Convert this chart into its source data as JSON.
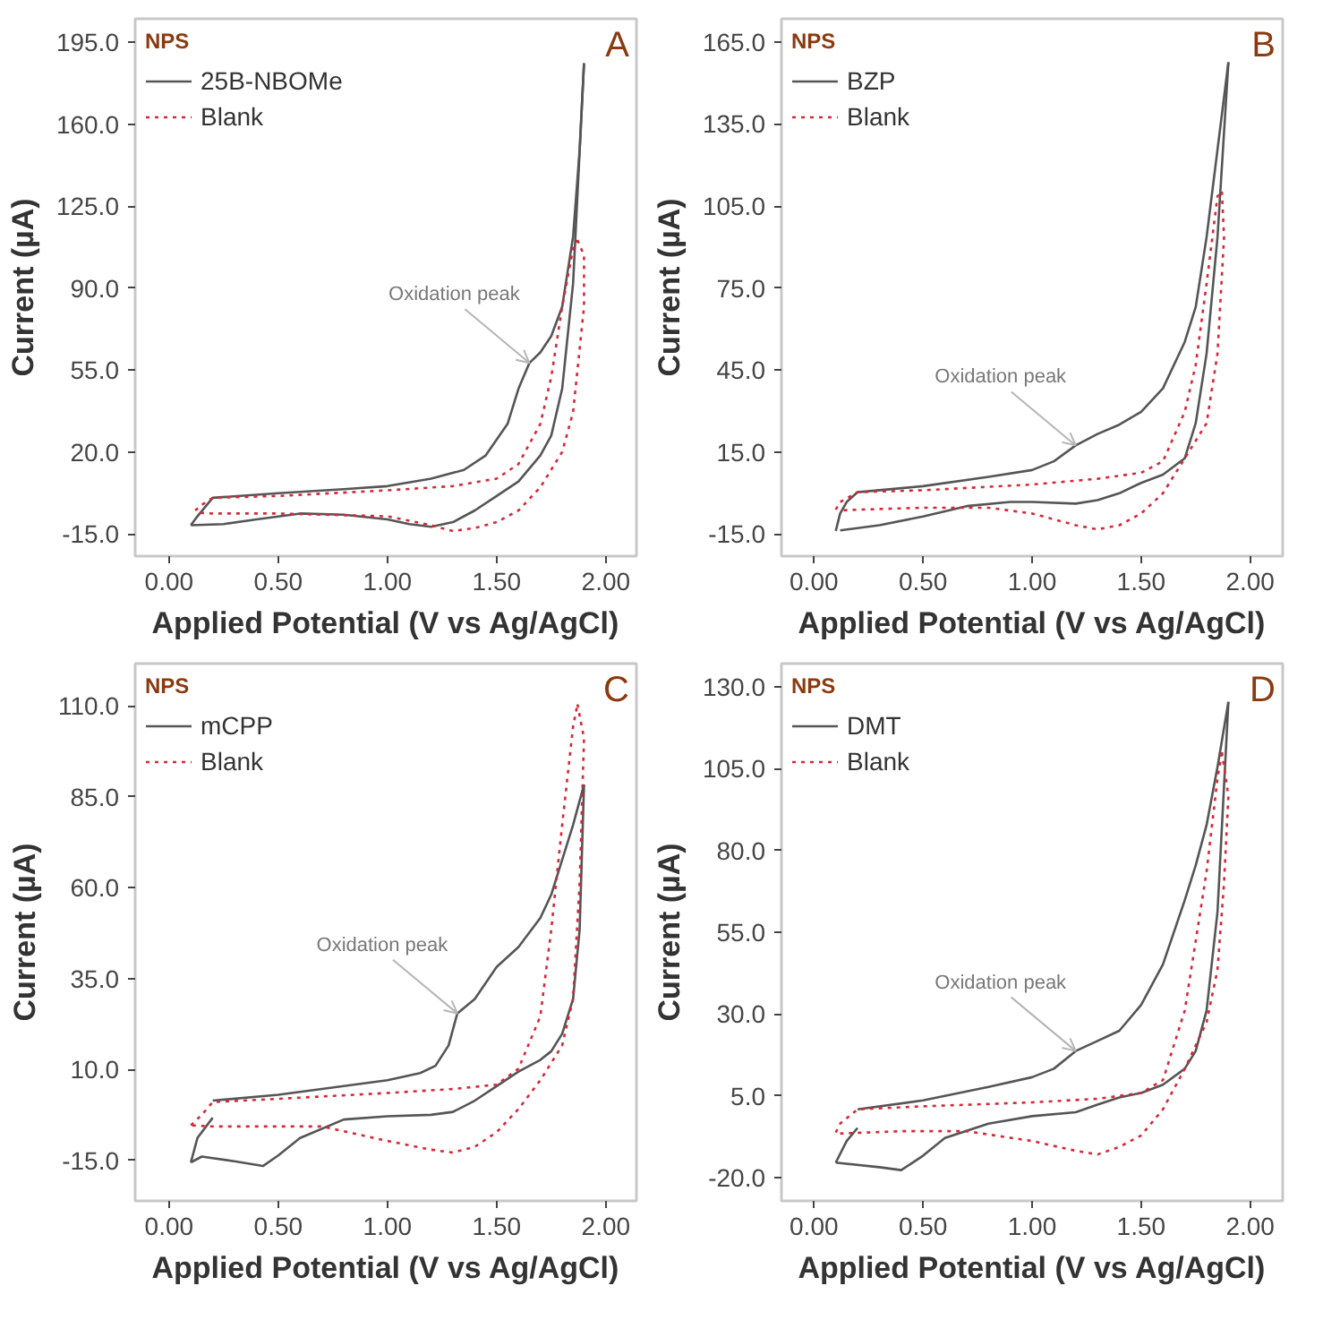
{
  "chart_data": [
    {
      "type": "line",
      "xlabel": "Applied Potential (V vs Ag/AgCl)",
      "ylabel": "Current (µA)",
      "legend_title": "NPS",
      "legend": "top left",
      "grid": false,
      "xlim": [
        -0.155,
        2.14
      ],
      "ylim": [
        -24.5,
        205
      ],
      "xticks": [
        {
          "value": 0,
          "label": "0.00"
        },
        {
          "value": 0.5,
          "label": "0.50"
        },
        {
          "value": 1,
          "label": "1.00"
        },
        {
          "value": 1.5,
          "label": "1.50"
        },
        {
          "value": 2,
          "label": "2.00"
        }
      ],
      "yticks": [
        {
          "value": -15,
          "label": "-15.0"
        },
        {
          "value": 20,
          "label": "20.0"
        },
        {
          "value": 55,
          "label": "55.0"
        },
        {
          "value": 90,
          "label": "90.0"
        },
        {
          "value": 125,
          "label": "125.0"
        },
        {
          "value": 160,
          "label": "160.0"
        },
        {
          "value": 195,
          "label": "195.0"
        }
      ],
      "series": [
        {
          "name": "25B-NBOMe",
          "color": "#555555",
          "line_style": "solid",
          "x": [
            0.1,
            0.13,
            0.2,
            0.5,
            0.8,
            1.0,
            1.2,
            1.35,
            1.45,
            1.55,
            1.6,
            1.65,
            1.7,
            1.75,
            1.8,
            1.85,
            1.88,
            1.9
          ],
          "values": [
            -11.3,
            -7.5,
            0.4,
            2.4,
            4.1,
            5.4,
            8.6,
            12.3,
            18.5,
            32,
            47,
            58,
            62.5,
            69.5,
            82,
            112,
            149,
            186
          ]
        },
        {
          "color": "#555555",
          "line_style": "solid",
          "x": [
            1.9,
            1.85,
            1.8,
            1.75,
            1.7,
            1.6,
            1.5,
            1.4,
            1.3,
            1.2,
            1.1,
            1.0,
            0.8,
            0.6,
            0.4,
            0.25,
            0.1
          ],
          "values": [
            186,
            92,
            47,
            27,
            18.5,
            7.4,
            1.2,
            -5,
            -10,
            -12,
            -10.8,
            -8.8,
            -6.8,
            -6.3,
            -8.8,
            -10.8,
            -11.3
          ]
        },
        {
          "name": "Blank",
          "color": "#d62839",
          "line_style": "dotted",
          "x": [
            0.12,
            0.15,
            0.2,
            0.5,
            1.0,
            1.3,
            1.5,
            1.6,
            1.7,
            1.75,
            1.8,
            1.85,
            1.87
          ],
          "values": [
            -5,
            -2.6,
            0.4,
            1.2,
            3.6,
            5.4,
            8.6,
            14.8,
            32,
            52,
            82,
            107,
            110.5
          ]
        },
        {
          "color": "#d62839",
          "line_style": "dotted",
          "x": [
            1.87,
            1.9,
            1.9,
            1.85,
            1.8,
            1.7,
            1.6,
            1.5,
            1.4,
            1.3,
            1.2,
            1.0,
            0.5,
            0.2,
            0.14
          ],
          "values": [
            110.5,
            104,
            82,
            37,
            20,
            4.9,
            -5,
            -10,
            -12.5,
            -13.8,
            -11.3,
            -7.5,
            -6.3,
            -6.3,
            -6.0
          ]
        }
      ],
      "annotations": [
        "A",
        {
          "text": "Oxidation peak",
          "x": 1.65,
          "y": 58
        }
      ]
    },
    {
      "type": "line",
      "xlabel": "Applied Potential (V vs Ag/AgCl)",
      "ylabel": "Current (µA)",
      "legend_title": "NPS",
      "legend": "top left",
      "grid": false,
      "xlim": [
        -0.149,
        2.149
      ],
      "ylim": [
        -23.1,
        173.5
      ],
      "xticks": [
        {
          "value": 0,
          "label": "0.00"
        },
        {
          "value": 0.5,
          "label": "0.50"
        },
        {
          "value": 1,
          "label": "1.00"
        },
        {
          "value": 1.5,
          "label": "1.50"
        },
        {
          "value": 2,
          "label": "2.00"
        }
      ],
      "yticks": [
        {
          "value": -15,
          "label": "-15.0"
        },
        {
          "value": 15,
          "label": "15.0"
        },
        {
          "value": 45,
          "label": "45.0"
        },
        {
          "value": 75,
          "label": "75.0"
        },
        {
          "value": 105,
          "label": "105.0"
        },
        {
          "value": 135,
          "label": "135.0"
        },
        {
          "value": 165,
          "label": "165.0"
        }
      ],
      "series": [
        {
          "name": "BZP",
          "color": "#555555",
          "line_style": "solid",
          "x": [
            0.1,
            0.12,
            0.15,
            0.2,
            0.5,
            0.8,
            1.0,
            1.1,
            1.2,
            1.3,
            1.4,
            1.5,
            1.6,
            1.7,
            1.75,
            1.8,
            1.85,
            1.9
          ],
          "values": [
            -13.9,
            -7.5,
            -3.3,
            0.3,
            2.5,
            5.9,
            8.4,
            11.6,
            17.4,
            21.6,
            25,
            29.7,
            38.3,
            55.3,
            68,
            93.6,
            125.6,
            157.6
          ]
        },
        {
          "color": "#555555",
          "line_style": "solid",
          "x": [
            1.9,
            1.85,
            1.8,
            1.75,
            1.7,
            1.6,
            1.5,
            1.4,
            1.3,
            1.2,
            1.0,
            0.9,
            0.7,
            0.5,
            0.3,
            0.12
          ],
          "values": [
            157.6,
            93.6,
            51,
            25.5,
            12.7,
            6.7,
            3.7,
            -0.1,
            -2.6,
            -3.9,
            -3.3,
            -3.3,
            -4.8,
            -8.6,
            -11.8,
            -13.7
          ]
        },
        {
          "name": "Blank",
          "color": "#d62839",
          "line_style": "dotted",
          "x": [
            0.1,
            0.12,
            0.2,
            0.5,
            1.0,
            1.3,
            1.5,
            1.6,
            1.7,
            1.75,
            1.8,
            1.85,
            1.87
          ],
          "values": [
            -6.1,
            -3.3,
            0.3,
            1,
            3.1,
            5.2,
            7.4,
            11.6,
            29.7,
            46.8,
            76.6,
            108.6,
            110.3
          ]
        },
        {
          "color": "#d62839",
          "line_style": "dotted",
          "x": [
            1.87,
            1.88,
            1.85,
            1.8,
            1.7,
            1.6,
            1.5,
            1.4,
            1.3,
            1.2,
            1.0,
            0.8,
            0.5,
            0.2,
            0.12
          ],
          "values": [
            110.3,
            93.6,
            51,
            25.5,
            12.7,
            -0.1,
            -7.5,
            -11.8,
            -13.3,
            -11.8,
            -7.5,
            -5.4,
            -5.4,
            -6.1,
            -6.4
          ]
        }
      ],
      "annotations": [
        "B",
        {
          "text": "Oxidation peak",
          "x": 1.2,
          "y": 17.4
        }
      ]
    },
    {
      "type": "line",
      "xlabel": "Applied Potential (V vs Ag/AgCl)",
      "ylabel": "Current (µA)",
      "legend_title": "NPS",
      "legend": "top left",
      "grid": false,
      "xlim": [
        -0.155,
        2.14
      ],
      "ylim": [
        -26.2,
        121.7
      ],
      "xticks": [
        {
          "value": 0,
          "label": "0.00"
        },
        {
          "value": 0.5,
          "label": "0.50"
        },
        {
          "value": 1,
          "label": "1.00"
        },
        {
          "value": 1.5,
          "label": "1.50"
        },
        {
          "value": 2,
          "label": "2.00"
        }
      ],
      "yticks": [
        {
          "value": -15,
          "label": "-15.0"
        },
        {
          "value": 10,
          "label": "10.0"
        },
        {
          "value": 35,
          "label": "35.0"
        },
        {
          "value": 60,
          "label": "60.0"
        },
        {
          "value": 85,
          "label": "85.0"
        },
        {
          "value": 110,
          "label": "110.0"
        }
      ],
      "series": [
        {
          "name": "mCPP",
          "color": "#555555",
          "line_style": "solid",
          "x": [
            0.2,
            0.5,
            0.8,
            1.0,
            1.15,
            1.22,
            1.28,
            1.32,
            1.4,
            1.5,
            1.6,
            1.7,
            1.75,
            1.8,
            1.85,
            1.9
          ],
          "values": [
            1.4,
            3,
            5.4,
            7,
            9,
            11,
            16.6,
            25.4,
            29.4,
            38.2,
            43.7,
            51.7,
            58.1,
            67.7,
            77.3,
            88.4
          ]
        },
        {
          "color": "#555555",
          "line_style": "solid",
          "x": [
            1.9,
            1.88,
            1.85,
            1.8,
            1.75,
            1.7,
            1.6,
            1.5,
            1.4,
            1.3,
            1.2,
            1.0,
            0.8,
            0.6,
            0.5,
            0.43,
            0.3,
            0.15,
            0.1
          ],
          "values": [
            88.4,
            48.5,
            29.4,
            19.8,
            15,
            12.6,
            9.4,
            5.4,
            1.4,
            -1.7,
            -2.5,
            -2.9,
            -3.8,
            -8.9,
            -13.7,
            -16.6,
            -15.3,
            -14,
            -15.6
          ]
        },
        {
          "color": "#555555",
          "line_style": "solid",
          "x": [
            0.1,
            0.13,
            0.2
          ],
          "values": [
            -15.6,
            -8.9,
            -3.3
          ]
        },
        {
          "name": "Blank",
          "color": "#d62839",
          "line_style": "dotted",
          "x": [
            0.1,
            0.15,
            0.2,
            0.5,
            1.0,
            1.3,
            1.5,
            1.6,
            1.7,
            1.75,
            1.8,
            1.85,
            1.87
          ],
          "values": [
            -5.4,
            -2.5,
            1,
            1.9,
            3.5,
            4.6,
            5.8,
            10.2,
            24.6,
            48.5,
            77.3,
            104.4,
            110.5
          ]
        },
        {
          "color": "#d62839",
          "line_style": "dotted",
          "x": [
            1.87,
            1.9,
            1.88,
            1.85,
            1.8,
            1.7,
            1.6,
            1.5,
            1.4,
            1.3,
            1.2,
            1.0,
            0.7,
            0.5,
            0.2,
            0.1
          ],
          "values": [
            110.5,
            101.2,
            61.3,
            29.4,
            16.6,
            7,
            -0.9,
            -7.3,
            -11.3,
            -12.9,
            -12.1,
            -9.7,
            -5.7,
            -5.7,
            -5.7,
            -5.4
          ]
        }
      ],
      "annotations": [
        "C",
        {
          "text": "Oxidation peak",
          "x": 1.32,
          "y": 25.4
        }
      ]
    },
    {
      "type": "line",
      "xlabel": "Applied Potential (V vs Ag/AgCl)",
      "ylabel": "Current (µA)",
      "legend_title": "NPS",
      "legend": "top left",
      "grid": false,
      "xlim": [
        -0.149,
        2.149
      ],
      "ylim": [
        -27.1,
        137.1
      ],
      "xticks": [
        {
          "value": 0,
          "label": "0.00"
        },
        {
          "value": 0.5,
          "label": "0.50"
        },
        {
          "value": 1,
          "label": "1.00"
        },
        {
          "value": 1.5,
          "label": "1.50"
        },
        {
          "value": 2,
          "label": "2.00"
        }
      ],
      "yticks": [
        {
          "value": -20,
          "label": "-20.0"
        },
        {
          "value": 5,
          "label": "5.0"
        },
        {
          "value": 30,
          "label": "30.0"
        },
        {
          "value": 55,
          "label": "55.0"
        },
        {
          "value": 80,
          "label": "80.0"
        },
        {
          "value": 105,
          "label": "105.0"
        },
        {
          "value": 130,
          "label": "130.0"
        }
      ],
      "series": [
        {
          "name": "DMT",
          "color": "#555555",
          "line_style": "solid",
          "x": [
            0.2,
            0.5,
            0.8,
            1.0,
            1.1,
            1.2,
            1.3,
            1.4,
            1.5,
            1.6,
            1.7,
            1.75,
            1.8,
            1.85,
            1.9
          ],
          "values": [
            0.9,
            3.6,
            7.7,
            10.7,
            13.3,
            18.7,
            21.8,
            24.9,
            32.8,
            45.2,
            64.8,
            75.4,
            87.8,
            105.5,
            125.4
          ]
        },
        {
          "color": "#555555",
          "line_style": "solid",
          "x": [
            1.9,
            1.85,
            1.8,
            1.75,
            1.7,
            1.6,
            1.5,
            1.4,
            1.3,
            1.2,
            1.0,
            0.8,
            0.6,
            0.5,
            0.4,
            0.3,
            0.1
          ],
          "values": [
            125.4,
            61.2,
            31.1,
            18.7,
            13.3,
            8.4,
            5.9,
            4.5,
            2.3,
            0,
            -1.2,
            -3.5,
            -7.9,
            -13.3,
            -17.7,
            -16.8,
            -15.4
          ]
        },
        {
          "color": "#555555",
          "line_style": "solid",
          "x": [
            0.1,
            0.15,
            0.2
          ],
          "values": [
            -15.4,
            -8.8,
            -4.8
          ]
        },
        {
          "name": "Blank",
          "color": "#d62839",
          "line_style": "dotted",
          "x": [
            0.1,
            0.12,
            0.2,
            0.5,
            1.0,
            1.3,
            1.5,
            1.6,
            1.7,
            1.75,
            1.8,
            1.85,
            1.87
          ],
          "values": [
            -6.2,
            -3.5,
            0.9,
            1.8,
            3,
            4.1,
            5.9,
            9.8,
            31.1,
            52.3,
            73.6,
            102,
            110
          ]
        },
        {
          "color": "#d62839",
          "line_style": "dotted",
          "x": [
            1.87,
            1.9,
            1.88,
            1.85,
            1.8,
            1.7,
            1.6,
            1.5,
            1.4,
            1.3,
            1.2,
            1.0,
            0.7,
            0.4,
            0.12
          ],
          "values": [
            110,
            96.7,
            70.1,
            43.5,
            27.5,
            13.3,
            0.9,
            -7.1,
            -10.6,
            -12.9,
            -11.8,
            -8.8,
            -5.8,
            -5.8,
            -6.5
          ]
        }
      ],
      "annotations": [
        "D",
        {
          "text": "Oxidation peak",
          "x": 1.2,
          "y": 18.7
        }
      ]
    }
  ]
}
